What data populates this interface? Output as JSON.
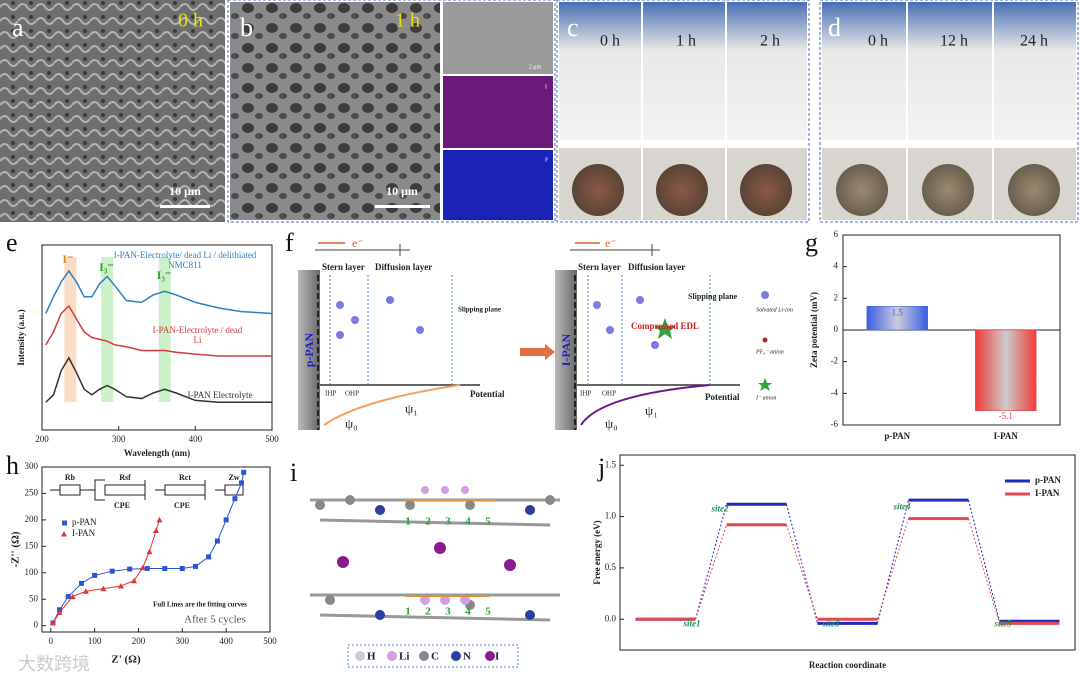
{
  "panel_labels": [
    "a",
    "b",
    "c",
    "d",
    "e",
    "f",
    "g",
    "h",
    "i",
    "j"
  ],
  "images": {
    "a": {
      "time": "0 h",
      "scale": "10 μm"
    },
    "b": {
      "time": "1 h",
      "scale": "10 μm",
      "inset_scale": "2 μm",
      "map1": "I",
      "map2": "F"
    },
    "c": {
      "times": [
        "0 h",
        "1 h",
        "2 h"
      ]
    },
    "d": {
      "times": [
        "0 h",
        "12 h",
        "24 h"
      ]
    }
  },
  "diagram_f": {
    "left": {
      "electron": "e⁻",
      "stern": "Stern layer",
      "diffusion": "Diffusion layer",
      "slipping": "Slipping plane",
      "electrode": "p-PAN",
      "ihp": "IHP",
      "ohp": "OHP",
      "potential": "Potential",
      "psi0": "ψ₀",
      "psi1": "ψ₁"
    },
    "right": {
      "electron": "e⁻",
      "stern": "Stern layer",
      "diffusion": "Diffusion layer",
      "slipping": "Slipping plane",
      "electrode": "I-PAN",
      "compressed": "Compressed EDL",
      "ihp": "IHP",
      "ohp": "OHP",
      "potential": "Potential",
      "psi0": "ψ₀",
      "psi1": "ψ₁"
    },
    "legend": [
      "Solvated Li-ion",
      "PF₆⁻ anion",
      "I⁻ anion"
    ]
  },
  "molecule_i": {
    "sites_top": [
      "1",
      "2",
      "3",
      "4",
      "5"
    ],
    "sites_bottom": [
      "1",
      "2",
      "3",
      "4",
      "5"
    ],
    "legend": [
      "H",
      "Li",
      "C",
      "N",
      "I"
    ]
  },
  "watermark": "大数跨境",
  "chart_data": [
    {
      "type": "line",
      "xlabel": "Wavelength (nm)",
      "ylabel": "Intensity (a.u.)",
      "xlim": [
        200,
        500
      ],
      "xticks": [
        200,
        300,
        400,
        500
      ],
      "ylim": [
        0,
        10
      ],
      "bands": [
        {
          "x": 237,
          "label": "I⁻"
        },
        {
          "x": 285,
          "label": "I₃⁻"
        },
        {
          "x": 360,
          "label": "I₃⁻"
        }
      ],
      "x": [
        205,
        215,
        225,
        235,
        245,
        255,
        265,
        275,
        285,
        295,
        310,
        330,
        345,
        360,
        375,
        400,
        430,
        460,
        500
      ],
      "series": [
        {
          "name": "I-PAN-Electrolyte/ dead Li / delithiated NMC811",
          "color": "#2f7fc0",
          "values": [
            6.3,
            7.2,
            8.0,
            8.6,
            8.0,
            7.2,
            7.2,
            7.9,
            8.3,
            7.8,
            7.0,
            6.9,
            7.3,
            7.5,
            7.3,
            6.9,
            6.6,
            6.4,
            6.3
          ]
        },
        {
          "name": "I-PAN-Electrolyte / dead Li",
          "color": "#d23b3b",
          "values": [
            4.6,
            5.3,
            6.3,
            6.7,
            6.0,
            5.3,
            5.0,
            4.9,
            4.8,
            4.6,
            4.5,
            4.3,
            4.3,
            4.3,
            4.2,
            4.1,
            4.0,
            4.0,
            4.0
          ]
        },
        {
          "name": "I-PAN Electrolyte",
          "color": "#333333",
          "values": [
            1.5,
            1.9,
            3.2,
            3.9,
            3.1,
            2.2,
            1.9,
            2.2,
            2.4,
            2.2,
            1.8,
            1.7,
            2.0,
            2.2,
            2.0,
            1.6,
            1.5,
            1.5,
            1.5
          ]
        }
      ]
    },
    {
      "type": "bar",
      "ylabel": "Zeta potential (mV)",
      "categories": [
        "p-PAN",
        "I-PAN"
      ],
      "values": [
        1.5,
        -5.1
      ],
      "colors": [
        "#3a5de0",
        "#ee3b3b"
      ],
      "ylim": [
        -6,
        6
      ],
      "yticks": [
        -6,
        -4,
        -2,
        0,
        2,
        4,
        6
      ]
    },
    {
      "type": "scatter",
      "xlabel": "Z' (Ω)",
      "ylabel": "-Z'' (Ω)",
      "xlim": [
        -20,
        500
      ],
      "xticks": [
        0,
        100,
        200,
        300,
        400,
        500
      ],
      "ylim": [
        -12,
        300
      ],
      "yticks": [
        0,
        50,
        100,
        150,
        200,
        250,
        300
      ],
      "circuit": [
        "Rb",
        "Rsf",
        "CPE",
        "Rct",
        "CPE",
        "Zw"
      ],
      "annotations": [
        "Full Lines are the fitting curves",
        "After 5 cycles"
      ],
      "series": [
        {
          "name": "p-PAN",
          "color": "#2c55d0",
          "marker": "square",
          "x": [
            5,
            20,
            40,
            70,
            100,
            140,
            180,
            220,
            260,
            300,
            330,
            360,
            380,
            400,
            420,
            435,
            440
          ],
          "values": [
            5,
            30,
            55,
            80,
            95,
            103,
            107,
            108,
            108,
            108,
            112,
            130,
            160,
            200,
            240,
            270,
            290
          ]
        },
        {
          "name": "I-PAN",
          "color": "#e03535",
          "marker": "triangle",
          "x": [
            5,
            20,
            50,
            80,
            120,
            160,
            190,
            210,
            225,
            240,
            248
          ],
          "values": [
            5,
            25,
            55,
            65,
            70,
            75,
            85,
            110,
            140,
            180,
            200
          ]
        }
      ]
    },
    {
      "type": "energy",
      "xlabel": "Reaction coordinate",
      "ylabel": "Free energy (eV)",
      "categories": [
        "site1",
        "site2",
        "site3",
        "site4",
        "site5"
      ],
      "ylim": [
        -0.3,
        1.6
      ],
      "yticks": [
        {
          "value": 0,
          "label": "0.0"
        },
        0.5,
        {
          "value": 1,
          "label": "1.0"
        },
        1.5
      ],
      "series": [
        {
          "name": "p-PAN",
          "color": "#1c2dbd",
          "values": [
            0,
            1.12,
            -0.04,
            1.16,
            -0.02
          ]
        },
        {
          "name": "I-PAN",
          "color": "#e04a55",
          "values": [
            0,
            0.92,
            0.0,
            0.98,
            -0.04
          ]
        }
      ]
    }
  ]
}
